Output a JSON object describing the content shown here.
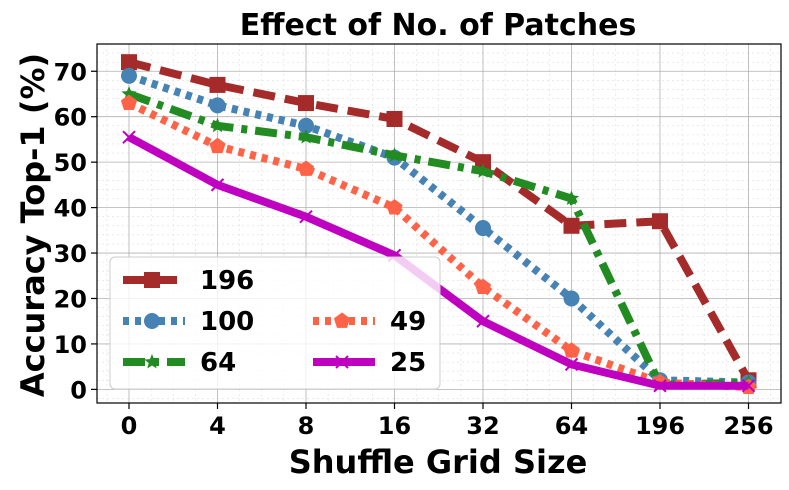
{
  "chart_data": {
    "type": "line",
    "title": "Effect of No. of Patches",
    "xlabel": "Shuffle Grid Size",
    "ylabel": "Accuracy Top-1 (%)",
    "categories": [
      "0",
      "4",
      "8",
      "16",
      "32",
      "64",
      "196",
      "256"
    ],
    "ylim": [
      -3,
      76
    ],
    "yticks": [
      0,
      10,
      20,
      30,
      40,
      50,
      60,
      70
    ],
    "grid": true,
    "legend": "lower-left",
    "series": [
      {
        "name": "196",
        "color": "#a52a2a",
        "dash": "dashed",
        "marker": "square",
        "values": [
          72,
          67,
          63,
          59.5,
          50,
          36,
          37,
          2
        ]
      },
      {
        "name": "100",
        "color": "#4682b4",
        "dash": "dotted",
        "marker": "circle",
        "values": [
          69,
          62.5,
          58,
          51,
          35.5,
          20,
          2,
          1.5
        ]
      },
      {
        "name": "64",
        "color": "#228b22",
        "dash": "dashdot",
        "marker": "star",
        "values": [
          65,
          58,
          55.5,
          51.5,
          48,
          42,
          1,
          1.5
        ]
      },
      {
        "name": "49",
        "color": "#ff6347",
        "dash": "dotted",
        "marker": "pentagon",
        "values": [
          63,
          53.5,
          48.5,
          40,
          22.5,
          8.5,
          1.5,
          0.5
        ]
      },
      {
        "name": "25",
        "color": "#bf00c0",
        "dash": "solid",
        "marker": "x",
        "values": [
          55.5,
          45,
          38,
          29.5,
          15,
          5.5,
          0.8,
          0.8
        ]
      }
    ]
  }
}
